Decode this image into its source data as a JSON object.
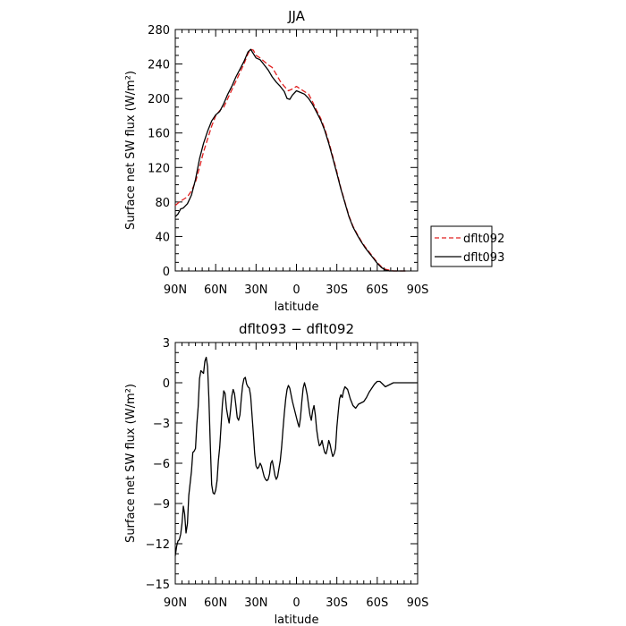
{
  "chart_data": [
    {
      "type": "line",
      "title": "JJA",
      "xlabel": "latitude",
      "ylabel": "Surface net SW flux (W/m²)",
      "xlim": [
        -90,
        90
      ],
      "ylim": [
        0,
        280
      ],
      "xticks": [
        {
          "value": -90,
          "label": "90N"
        },
        {
          "value": -60,
          "label": "60N"
        },
        {
          "value": -30,
          "label": "30N"
        },
        {
          "value": 0,
          "label": "0"
        },
        {
          "value": 30,
          "label": "30S"
        },
        {
          "value": 60,
          "label": "60S"
        },
        {
          "value": 90,
          "label": "90S"
        }
      ],
      "yticks": [
        0,
        40,
        80,
        120,
        160,
        200,
        240,
        280
      ],
      "legend_position": "right",
      "series": [
        {
          "name": "dflt092",
          "color": "#e02020",
          "dash": "dashed",
          "x": [
            -90,
            -87,
            -84,
            -81,
            -78,
            -75,
            -72,
            -69,
            -66,
            -63,
            -60,
            -57,
            -54,
            -51,
            -48,
            -45,
            -42,
            -39,
            -36,
            -34,
            -32,
            -30,
            -27,
            -24,
            -21,
            -18,
            -15,
            -12,
            -9,
            -6,
            -3,
            0,
            3,
            6,
            9,
            12,
            15,
            18,
            21,
            24,
            27,
            30,
            33,
            36,
            39,
            42,
            45,
            48,
            51,
            54,
            57,
            60,
            63,
            66,
            69,
            72,
            75,
            78,
            81
          ],
          "y": [
            76,
            80,
            83,
            86,
            93,
            103,
            120,
            138,
            153,
            168,
            180,
            186,
            190,
            200,
            210,
            220,
            230,
            240,
            252,
            257,
            256,
            250,
            247,
            243,
            239,
            236,
            228,
            220,
            214,
            209,
            211,
            214,
            211,
            208,
            205,
            196,
            186,
            177,
            165,
            150,
            133,
            115,
            96,
            80,
            64,
            52,
            43,
            35,
            28,
            22,
            16,
            10,
            5,
            2,
            1,
            0,
            0,
            0,
            0
          ]
        },
        {
          "name": "dflt093",
          "color": "#000000",
          "dash": "solid",
          "x": [
            -90,
            -88,
            -86,
            -84,
            -81,
            -78,
            -75,
            -72,
            -69,
            -66,
            -63,
            -60,
            -57,
            -54,
            -51,
            -48,
            -45,
            -42,
            -39,
            -36,
            -34,
            -32,
            -30,
            -27,
            -24,
            -21,
            -18,
            -15,
            -12,
            -9,
            -7,
            -5,
            -3,
            0,
            3,
            6,
            9,
            12,
            15,
            18,
            21,
            24,
            27,
            30,
            33,
            36,
            39,
            42,
            45,
            48,
            51,
            54,
            57,
            60,
            63,
            66,
            69,
            72,
            75,
            78,
            81
          ],
          "y": [
            63,
            66,
            72,
            73,
            78,
            88,
            106,
            130,
            148,
            162,
            174,
            181,
            185,
            194,
            205,
            214,
            225,
            234,
            243,
            254,
            257,
            252,
            247,
            245,
            239,
            233,
            225,
            219,
            214,
            208,
            200,
            199,
            204,
            209,
            207,
            205,
            200,
            193,
            184,
            175,
            163,
            148,
            131,
            113,
            95,
            79,
            63,
            51,
            42,
            34,
            27,
            21,
            15,
            9,
            4,
            1,
            0,
            0,
            0,
            0,
            0
          ]
        }
      ]
    },
    {
      "type": "line",
      "title": "dflt093 − dflt092",
      "xlabel": "latitude",
      "ylabel": "Surface net SW flux (W/m²)",
      "xlim": [
        -90,
        90
      ],
      "ylim": [
        -15,
        3
      ],
      "xticks": [
        {
          "value": -90,
          "label": "90N"
        },
        {
          "value": -60,
          "label": "60N"
        },
        {
          "value": -30,
          "label": "30N"
        },
        {
          "value": 0,
          "label": "0"
        },
        {
          "value": 30,
          "label": "30S"
        },
        {
          "value": 60,
          "label": "60S"
        },
        {
          "value": 90,
          "label": "90S"
        }
      ],
      "yticks": [
        -15,
        -12,
        -9,
        -6,
        -3,
        0,
        3
      ],
      "series": [
        {
          "color": "#000000",
          "dash": "solid",
          "x": [
            -90,
            -89,
            -88,
            -87,
            -86,
            -85,
            -84,
            -83,
            -82,
            -81,
            -80,
            -78,
            -77,
            -76,
            -75,
            -74,
            -73,
            -72,
            -71,
            -70,
            -69,
            -68,
            -67,
            -66,
            -65,
            -64,
            -63,
            -62,
            -61,
            -60,
            -59,
            -58,
            -57,
            -56,
            -55,
            -54,
            -53,
            -52,
            -51,
            -50,
            -49,
            -48,
            -47,
            -46,
            -45,
            -44,
            -43,
            -42,
            -41,
            -40,
            -39,
            -38,
            -37,
            -36,
            -35,
            -34,
            -33,
            -32,
            -31,
            -30,
            -29,
            -28,
            -27,
            -26,
            -25,
            -24,
            -23,
            -22,
            -21,
            -20,
            -19,
            -18,
            -17,
            -16,
            -15,
            -14,
            -13,
            -12,
            -11,
            -10,
            -9,
            -8,
            -7,
            -6,
            -5,
            -4,
            -3,
            -2,
            -1,
            0,
            1,
            2,
            3,
            4,
            5,
            6,
            7,
            8,
            9,
            10,
            11,
            12,
            13,
            14,
            15,
            16,
            17,
            18,
            19,
            20,
            21,
            22,
            23,
            24,
            25,
            26,
            27,
            28,
            29,
            30,
            31,
            32,
            33,
            34,
            35,
            36,
            38,
            40,
            42,
            44,
            46,
            48,
            50,
            52,
            54,
            56,
            58,
            60,
            62,
            64,
            66,
            68,
            70,
            72,
            74,
            76,
            78,
            80,
            82,
            84,
            86,
            88,
            90
          ],
          "y": [
            -12.9,
            -12.2,
            -11.8,
            -11.7,
            -11.3,
            -10.5,
            -9.2,
            -9.8,
            -11.2,
            -10.5,
            -8.4,
            -6.6,
            -5.2,
            -5.1,
            -4.9,
            -3.1,
            -1.8,
            0.3,
            0.9,
            0.8,
            0.7,
            1.6,
            1.9,
            1.2,
            -1.2,
            -4.5,
            -7.6,
            -8.2,
            -8.3,
            -8.0,
            -7.3,
            -5.8,
            -4.8,
            -3.2,
            -1.6,
            -0.6,
            -0.8,
            -1.9,
            -2.5,
            -3.0,
            -2.1,
            -1.0,
            -0.5,
            -0.8,
            -1.7,
            -2.6,
            -2.8,
            -2.4,
            -1.2,
            -0.2,
            0.3,
            0.4,
            -0.1,
            -0.3,
            -0.4,
            -1.0,
            -2.4,
            -3.8,
            -5.3,
            -6.2,
            -6.4,
            -6.3,
            -6.0,
            -6.2,
            -6.6,
            -7.0,
            -7.2,
            -7.3,
            -7.2,
            -6.8,
            -6.0,
            -5.8,
            -6.3,
            -6.9,
            -7.2,
            -7.0,
            -6.4,
            -5.8,
            -4.8,
            -3.5,
            -2.3,
            -1.2,
            -0.5,
            -0.2,
            -0.4,
            -0.9,
            -1.4,
            -1.8,
            -2.2,
            -2.6,
            -3.0,
            -3.3,
            -2.6,
            -1.4,
            -0.4,
            0.0,
            -0.4,
            -0.9,
            -1.7,
            -2.4,
            -2.8,
            -2.1,
            -1.7,
            -2.4,
            -3.5,
            -4.2,
            -4.7,
            -4.6,
            -4.3,
            -4.8,
            -5.2,
            -5.3,
            -4.9,
            -4.3,
            -4.6,
            -5.1,
            -5.5,
            -5.3,
            -4.9,
            -3.3,
            -2.2,
            -1.2,
            -0.9,
            -1.1,
            -0.6,
            -0.3,
            -0.5,
            -1.2,
            -1.7,
            -1.9,
            -1.6,
            -1.5,
            -1.4,
            -1.1,
            -0.7,
            -0.4,
            -0.1,
            0.1,
            0.1,
            -0.1,
            -0.3,
            -0.2,
            -0.1,
            0.0,
            0.0,
            0.0,
            0.0,
            0.0,
            0.0,
            0.0,
            0.0,
            0.0,
            0.0
          ]
        }
      ]
    }
  ]
}
